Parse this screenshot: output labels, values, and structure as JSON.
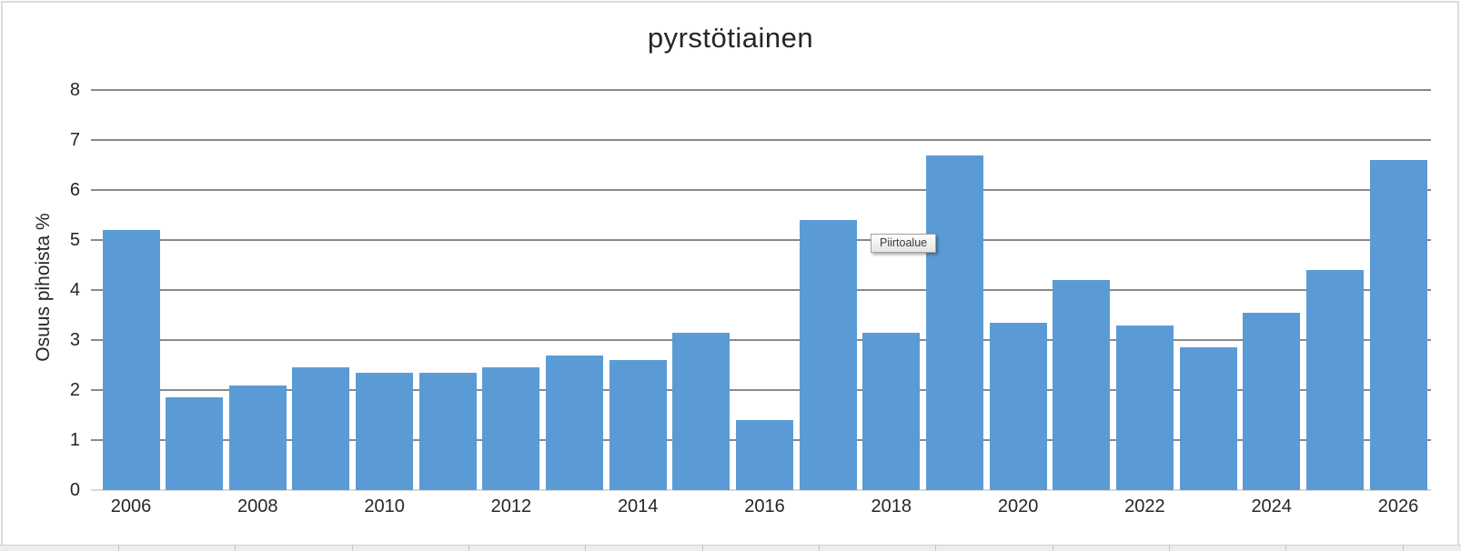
{
  "chart_data": {
    "type": "bar",
    "title": "pyrstötiainen",
    "ylabel": "Osuus pihoista %",
    "xlabel": "",
    "categories": [
      "2006",
      "2007",
      "2008",
      "2009",
      "2010",
      "2011",
      "2012",
      "2013",
      "2014",
      "2015",
      "2016",
      "2017",
      "2018",
      "2019",
      "2020",
      "2021",
      "2022",
      "2023",
      "2024",
      "2025",
      "2026"
    ],
    "values": [
      5.2,
      1.85,
      2.1,
      2.45,
      2.35,
      2.35,
      2.45,
      2.7,
      2.6,
      3.15,
      1.4,
      5.4,
      3.15,
      6.7,
      3.35,
      4.2,
      3.3,
      2.85,
      3.55,
      4.4,
      6.6
    ],
    "ylim": [
      0,
      8
    ],
    "yticks": [
      0,
      1,
      2,
      3,
      4,
      5,
      6,
      7,
      8
    ],
    "xtick_labels_shown": [
      "2006",
      "2008",
      "2010",
      "2012",
      "2014",
      "2016",
      "2018",
      "2020",
      "2022",
      "2024",
      "2026"
    ],
    "grid": "horizontal-major",
    "legend": "none",
    "colors": {
      "bar": "#5B9BD5",
      "gridline": "#898989",
      "axis_line": "#d9d9d9",
      "text": "#262626",
      "chart_border": "#dcdcdc"
    }
  },
  "tooltip": {
    "label": "Piirtoalue"
  }
}
